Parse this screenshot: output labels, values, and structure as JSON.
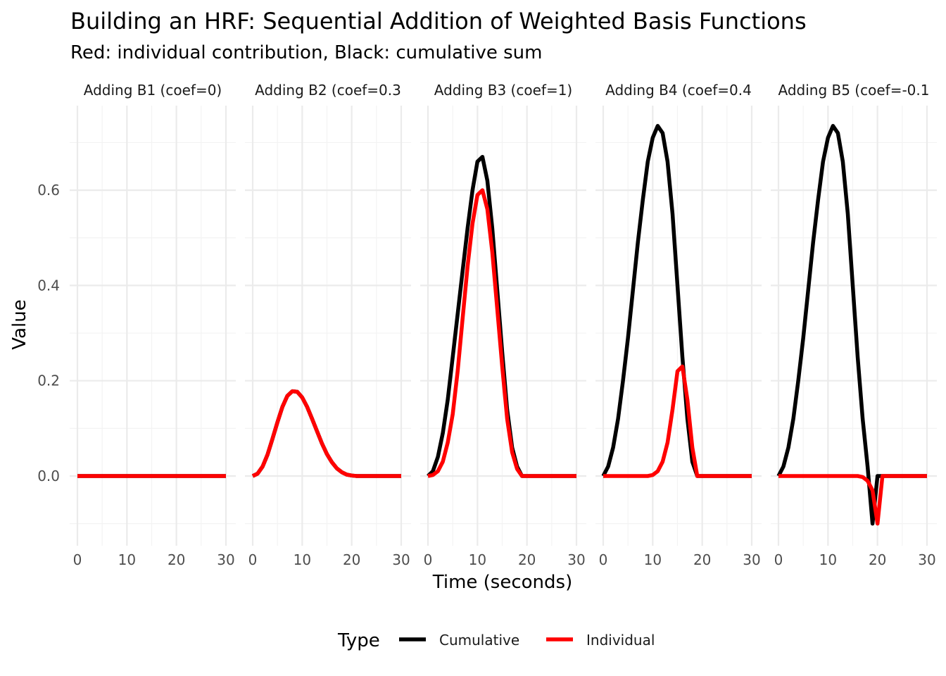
{
  "chart_data": {
    "type": "line",
    "title": "Building an HRF: Sequential Addition of Weighted Basis Functions",
    "subtitle": "Red: individual contribution, Black: cumulative sum",
    "xlabel": "Time (seconds)",
    "ylabel": "Value",
    "xlim": [
      0,
      30
    ],
    "ylim": [
      -0.1,
      0.74
    ],
    "x_ticks": [
      "0",
      "10",
      "20",
      "30"
    ],
    "y_ticks": [
      {
        "value": 0.0,
        "label": "0.0"
      },
      {
        "value": 0.2,
        "label": "0.2"
      },
      {
        "value": 0.4,
        "label": "0.4"
      },
      {
        "value": 0.6,
        "label": "0.6"
      }
    ],
    "grid": true,
    "legend": {
      "title": "Type",
      "position": "bottom",
      "entries": [
        {
          "label": "Cumulative",
          "color": "#000000"
        },
        {
          "label": "Individual",
          "color": "#ff0000"
        }
      ]
    },
    "x": [
      0,
      1,
      2,
      3,
      4,
      5,
      6,
      7,
      8,
      9,
      10,
      11,
      12,
      13,
      14,
      15,
      16,
      17,
      18,
      19,
      20,
      21,
      22,
      23,
      24,
      25,
      26,
      27,
      28,
      29,
      30
    ],
    "panels": [
      {
        "label": "Adding B1 (coef=0)",
        "series": [
          {
            "name": "Cumulative",
            "values": [
              0,
              0,
              0,
              0,
              0,
              0,
              0,
              0,
              0,
              0,
              0,
              0,
              0,
              0,
              0,
              0,
              0,
              0,
              0,
              0,
              0,
              0,
              0,
              0,
              0,
              0,
              0,
              0,
              0,
              0,
              0
            ]
          },
          {
            "name": "Individual",
            "values": [
              0,
              0,
              0,
              0,
              0,
              0,
              0,
              0,
              0,
              0,
              0,
              0,
              0,
              0,
              0,
              0,
              0,
              0,
              0,
              0,
              0,
              0,
              0,
              0,
              0,
              0,
              0,
              0,
              0,
              0,
              0
            ]
          }
        ]
      },
      {
        "label": "Adding B2 (coef=0.3",
        "series": [
          {
            "name": "Cumulative",
            "values": [
              0,
              0.005,
              0.02,
              0.045,
              0.078,
              0.113,
              0.145,
              0.168,
              0.178,
              0.177,
              0.165,
              0.145,
              0.12,
              0.094,
              0.068,
              0.046,
              0.029,
              0.016,
              0.008,
              0.003,
              0.001,
              0.0,
              0,
              0,
              0,
              0,
              0,
              0,
              0,
              0,
              0
            ]
          },
          {
            "name": "Individual",
            "values": [
              0,
              0.005,
              0.02,
              0.045,
              0.078,
              0.113,
              0.145,
              0.168,
              0.178,
              0.177,
              0.165,
              0.145,
              0.12,
              0.094,
              0.068,
              0.046,
              0.029,
              0.016,
              0.008,
              0.003,
              0.001,
              0.0,
              0,
              0,
              0,
              0,
              0,
              0,
              0,
              0,
              0
            ]
          }
        ]
      },
      {
        "label": "Adding B3 (coef=1)",
        "series": [
          {
            "name": "Cumulative",
            "values": [
              0,
              0.01,
              0.04,
              0.09,
              0.16,
              0.25,
              0.34,
              0.43,
              0.52,
              0.6,
              0.66,
              0.67,
              0.62,
              0.52,
              0.39,
              0.26,
              0.14,
              0.06,
              0.02,
              0,
              0,
              0,
              0,
              0,
              0,
              0,
              0,
              0,
              0,
              0,
              0
            ]
          },
          {
            "name": "Individual",
            "values": [
              0,
              0.002,
              0.01,
              0.03,
              0.07,
              0.13,
              0.22,
              0.33,
              0.44,
              0.53,
              0.59,
              0.6,
              0.56,
              0.47,
              0.35,
              0.23,
              0.12,
              0.05,
              0.015,
              0,
              0,
              0,
              0,
              0,
              0,
              0,
              0,
              0,
              0,
              0,
              0
            ]
          }
        ]
      },
      {
        "label": "Adding B4 (coef=0.4",
        "series": [
          {
            "name": "Cumulative",
            "values": [
              0,
              0.02,
              0.06,
              0.12,
              0.2,
              0.29,
              0.39,
              0.49,
              0.58,
              0.66,
              0.71,
              0.735,
              0.72,
              0.66,
              0.55,
              0.4,
              0.25,
              0.12,
              0.03,
              0,
              0,
              0,
              0,
              0,
              0,
              0,
              0,
              0,
              0,
              0,
              0
            ]
          },
          {
            "name": "Individual",
            "values": [
              0,
              0,
              0,
              0,
              0,
              0,
              0,
              0,
              0,
              0,
              0.002,
              0.01,
              0.03,
              0.07,
              0.14,
              0.22,
              0.23,
              0.16,
              0.06,
              0,
              0,
              0,
              0,
              0,
              0,
              0,
              0,
              0,
              0,
              0,
              0
            ]
          }
        ]
      },
      {
        "label": "Adding B5 (coef=-0.1",
        "series": [
          {
            "name": "Cumulative",
            "values": [
              0,
              0.02,
              0.06,
              0.12,
              0.2,
              0.29,
              0.39,
              0.49,
              0.58,
              0.66,
              0.71,
              0.735,
              0.72,
              0.66,
              0.55,
              0.4,
              0.25,
              0.12,
              0.02,
              -0.1,
              0,
              0,
              0,
              0,
              0,
              0,
              0,
              0,
              0,
              0,
              0
            ]
          },
          {
            "name": "Individual",
            "values": [
              0,
              0,
              0,
              0,
              0,
              0,
              0,
              0,
              0,
              0,
              0,
              0,
              0,
              0,
              0,
              0,
              0,
              -0.002,
              -0.01,
              -0.03,
              -0.1,
              0,
              0,
              0,
              0,
              0,
              0,
              0,
              0,
              0,
              0
            ]
          }
        ]
      }
    ]
  }
}
